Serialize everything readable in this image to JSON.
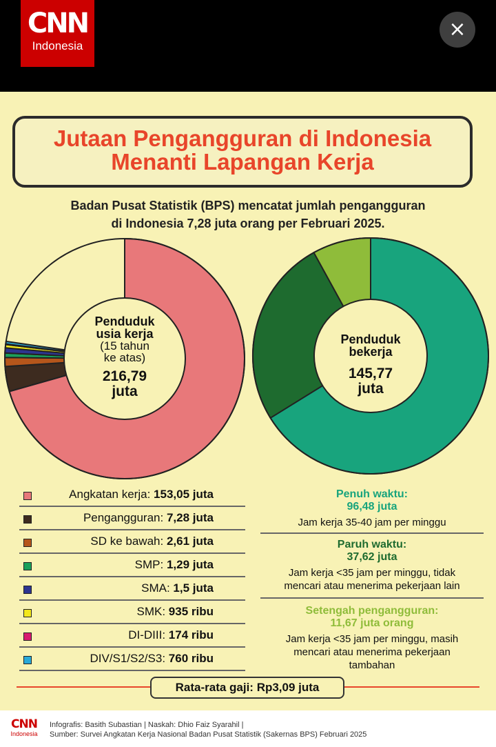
{
  "header": {
    "logo": {
      "brand": "CNN",
      "sub": "Indonesia"
    },
    "close_icon": "×"
  },
  "title": {
    "line1": "Jutaan Pengangguran di Indonesia",
    "line2": "Menanti Lapangan Kerja"
  },
  "subtitle": {
    "line1": "Badan Pusat Statistik (BPS) mencatat jumlah pengangguran",
    "line2": "di Indonesia 7,28 juta orang per Februari 2025."
  },
  "colors": {
    "background": "#f8f2b5",
    "title_red": "#e8452a",
    "dark_green": "#1e6b2f",
    "light_green": "#8fbc3a"
  },
  "chart_data": [
    {
      "type": "pie",
      "center": {
        "line1": "Penduduk",
        "line2": "usia kerja",
        "line3": "(15 tahun",
        "line4": "ke atas)",
        "value_line1": "216,79",
        "value_line2": "juta"
      },
      "total": 216.79,
      "slices": [
        {
          "label": "Angkatan kerja",
          "value": 153.05,
          "color": "#e8787a"
        },
        {
          "label": "Pengangguran",
          "value": 7.28,
          "color": "#3d2b1f"
        },
        {
          "label": "SD ke bawah",
          "value": 2.61,
          "color": "#b5561b"
        },
        {
          "label": "SMP",
          "value": 1.29,
          "color": "#1aa05a"
        },
        {
          "label": "SMA",
          "value": 1.5,
          "color": "#2d3590"
        },
        {
          "label": "SMK",
          "value": 0.935,
          "color": "#f3e81b"
        },
        {
          "label": "DI-DIII",
          "value": 0.174,
          "color": "#d81b6f"
        },
        {
          "label": "DIV/S1/S2/S3",
          "value": 0.76,
          "color": "#29a9d8"
        }
      ]
    },
    {
      "type": "pie",
      "center": {
        "line1": "Penduduk",
        "line2": "bekerja",
        "value_line1": "145,77",
        "value_line2": "juta"
      },
      "total": 145.77,
      "slices": [
        {
          "label": "Penuh waktu",
          "value": 96.48,
          "color": "#18a47d"
        },
        {
          "label": "Paruh waktu",
          "value": 37.62,
          "color": "#1e6b2f"
        },
        {
          "label": "Setengah pengangguran",
          "value": 11.67,
          "color": "#8fbc3a"
        }
      ]
    }
  ],
  "legend": [
    {
      "label": "Angkatan kerja:",
      "value": "153,05 juta",
      "color": "#e8787a"
    },
    {
      "label": "Pengangguran:",
      "value": "7,28 juta",
      "color": "#3d2b1f"
    },
    {
      "label": "SD ke bawah:",
      "value": "2,61 juta",
      "color": "#b5561b"
    },
    {
      "label": "SMP:",
      "value": "1,29 juta",
      "color": "#1aa05a"
    },
    {
      "label": "SMA:",
      "value": "1,5 juta",
      "color": "#2d3590"
    },
    {
      "label": "SMK:",
      "value": "935 ribu",
      "color": "#f3e81b"
    },
    {
      "label": "DI-DIII:",
      "value": "174 ribu",
      "color": "#d81b6f"
    },
    {
      "label": "DIV/S1/S2/S3:",
      "value": "760 ribu",
      "color": "#29a9d8"
    }
  ],
  "right_info": {
    "penuh": {
      "title": "Penuh waktu:",
      "value": "96,48 juta",
      "desc": "Jam kerja 35-40 jam per minggu"
    },
    "paruh": {
      "title": "Paruh waktu:",
      "value": "37,62 juta",
      "desc1": "Jam kerja <35 jam per minggu, tidak",
      "desc2": "mencari atau menerima pekerjaan lain"
    },
    "setengah": {
      "title": "Setengah pengangguran:",
      "value": "11,67 juta orang",
      "desc1": "Jam kerja <35 jam per minggu, masih",
      "desc2": "mencari atau menerima pekerjaan",
      "desc3": "tambahan"
    }
  },
  "gaji": "Rata-rata gaji: Rp3,09 juta",
  "footer": {
    "logo_brand": "CNN",
    "logo_sub": "Indonesia",
    "credit": "Infografis: Basith Subastian | Naskah: Dhio Faiz Syarahil |",
    "source": "Sumber: Survei Angkatan Kerja Nasional Badan Pusat Statistik (Sakernas BPS) Februari 2025"
  }
}
